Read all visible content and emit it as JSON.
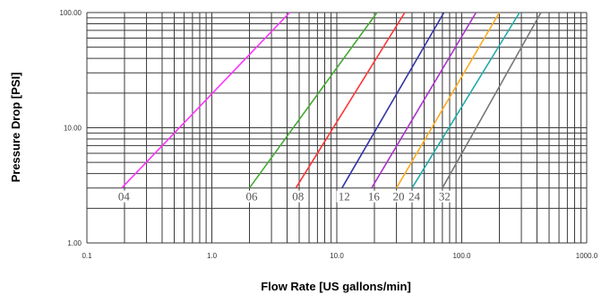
{
  "chart_data": {
    "type": "line",
    "title": "",
    "xlabel": "Flow Rate [US gallons/min]",
    "ylabel": "Pressure Drop [PSI]",
    "x_scale": "log",
    "y_scale": "log",
    "xlim": [
      0.1,
      1000
    ],
    "ylim": [
      1,
      100
    ],
    "x_tick_labels": [
      "0.1",
      "1.0",
      "10.0",
      "100.0",
      "1000.0"
    ],
    "y_tick_labels": [
      "1.00",
      "10.00",
      "100.00"
    ],
    "grid": true,
    "legend": "none",
    "series": [
      {
        "name": "04",
        "color": "#ff33ff",
        "x": [
          0.19,
          4.2
        ],
        "y": [
          3,
          100
        ]
      },
      {
        "name": "06",
        "color": "#44aa33",
        "x": [
          2.0,
          21.0
        ],
        "y": [
          3,
          100
        ]
      },
      {
        "name": "08",
        "color": "#ff3333",
        "x": [
          4.7,
          35.0
        ],
        "y": [
          3,
          100
        ]
      },
      {
        "name": "12",
        "color": "#3333aa",
        "x": [
          11.0,
          72.0
        ],
        "y": [
          3,
          100
        ]
      },
      {
        "name": "16",
        "color": "#aa33cc",
        "x": [
          19.0,
          130.0
        ],
        "y": [
          3,
          100
        ]
      },
      {
        "name": "20",
        "color": "#ffaa22",
        "x": [
          30.0,
          200.0
        ],
        "y": [
          3,
          100
        ]
      },
      {
        "name": "24",
        "color": "#22aaaa",
        "x": [
          40.0,
          290.0
        ],
        "y": [
          3,
          100
        ]
      },
      {
        "name": "32",
        "color": "#777777",
        "x": [
          70.0,
          430.0
        ],
        "y": [
          3,
          100
        ]
      }
    ]
  }
}
